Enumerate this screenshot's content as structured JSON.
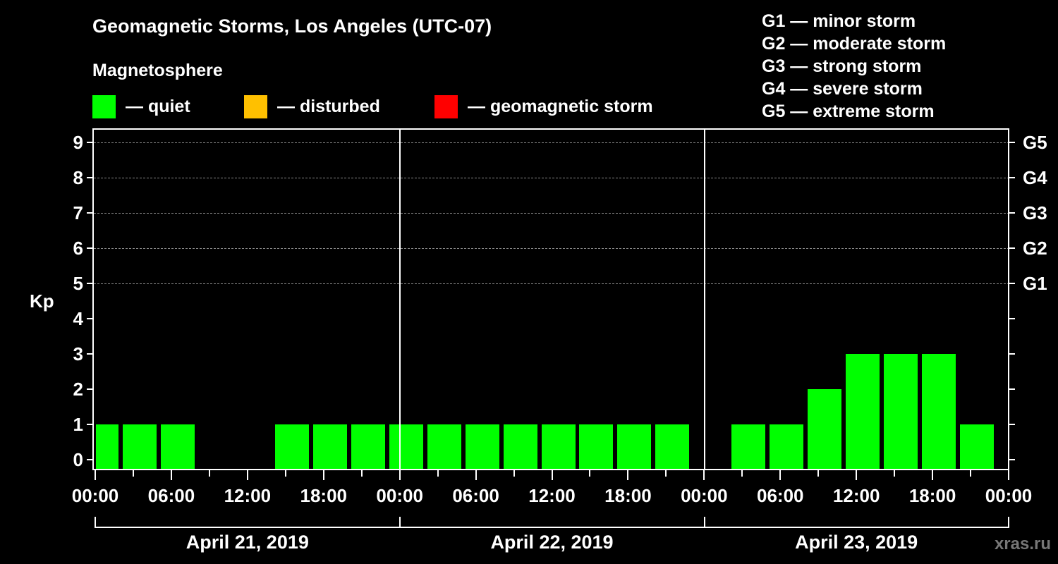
{
  "header": {
    "title": "Geomagnetic Storms, Los Angeles (UTC-07)",
    "subtitle": "Magnetosphere"
  },
  "legend": [
    {
      "label": "— quiet",
      "color": "#00ff00"
    },
    {
      "label": "— disturbed",
      "color": "#ffc000"
    },
    {
      "label": "— geomagnetic storm",
      "color": "#ff0000"
    }
  ],
  "storm_scale": [
    "G1 — minor storm",
    "G2 — moderate storm",
    "G3 — strong storm",
    "G4 — severe storm",
    "G5 — extreme storm"
  ],
  "axes": {
    "ylabel": "Kp",
    "yticks": [
      "0",
      "1",
      "2",
      "3",
      "4",
      "5",
      "6",
      "7",
      "8",
      "9"
    ],
    "right_ticks": [
      "G1",
      "G2",
      "G3",
      "G4",
      "G5"
    ],
    "xticks": [
      "00:00",
      "06:00",
      "12:00",
      "18:00",
      "00:00",
      "06:00",
      "12:00",
      "18:00",
      "00:00",
      "06:00",
      "12:00",
      "18:00",
      "00:00"
    ],
    "dates": [
      "April 21, 2019",
      "April 22, 2019",
      "April 23, 2019"
    ]
  },
  "watermark": "xras.ru",
  "chart_data": {
    "type": "bar",
    "title": "Geomagnetic Storms, Los Angeles (UTC-07)",
    "subtitle": "Magnetosphere",
    "xlabel": "",
    "ylabel": "Kp",
    "ylim": [
      0,
      9
    ],
    "right_axis_labels": {
      "5": "G1",
      "6": "G2",
      "7": "G3",
      "8": "G4",
      "9": "G5"
    },
    "grid": "dashed horizontal at Kp 5-9",
    "legend_position": "top",
    "bar_interval_hours": 3,
    "note": "3-hour Kp bars, offset -1h relative to local midnight (UTC-07 alignment); first bar clipped at left edge",
    "categories": [
      "Apr 20 23:00",
      "Apr 21 02:00",
      "Apr 21 05:00",
      "Apr 21 08:00",
      "Apr 21 11:00",
      "Apr 21 14:00",
      "Apr 21 17:00",
      "Apr 21 20:00",
      "Apr 21 23:00",
      "Apr 22 02:00",
      "Apr 22 05:00",
      "Apr 22 08:00",
      "Apr 22 11:00",
      "Apr 22 14:00",
      "Apr 22 17:00",
      "Apr 22 20:00",
      "Apr 22 23:00",
      "Apr 23 02:00",
      "Apr 23 05:00",
      "Apr 23 08:00",
      "Apr 23 11:00",
      "Apr 23 14:00",
      "Apr 23 17:00",
      "Apr 23 20:00"
    ],
    "values": [
      1,
      1,
      1,
      0,
      0,
      1,
      1,
      1,
      1,
      1,
      1,
      1,
      1,
      1,
      1,
      1,
      0,
      1,
      1,
      2,
      3,
      3,
      3,
      1
    ],
    "colors": [
      "quiet"
    ],
    "series": [
      {
        "name": "Kp",
        "values": [
          1,
          1,
          1,
          0,
          0,
          1,
          1,
          1,
          1,
          1,
          1,
          1,
          1,
          1,
          1,
          1,
          0,
          1,
          1,
          2,
          3,
          3,
          3,
          1
        ]
      }
    ]
  }
}
